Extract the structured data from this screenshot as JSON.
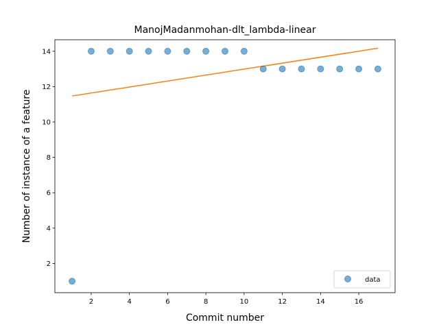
{
  "chart_data": {
    "type": "scatter",
    "title": "ManojMadanmohan-dlt_lambda-linear",
    "xlabel": "Commit number",
    "ylabel": "Number of instance of a feature",
    "xlim": [
      0.1,
      17.9
    ],
    "ylim": [
      0.35,
      14.65
    ],
    "xticks": [
      2,
      4,
      6,
      8,
      10,
      12,
      14,
      16
    ],
    "yticks": [
      2,
      4,
      6,
      8,
      10,
      12,
      14
    ],
    "grid": false,
    "legend_position": "lower-right",
    "series": [
      {
        "name": "data",
        "kind": "scatter",
        "color": "#1f77b4",
        "x": [
          1,
          2,
          3,
          4,
          5,
          6,
          7,
          8,
          9,
          10,
          11,
          12,
          13,
          14,
          15,
          16,
          17
        ],
        "y": [
          1,
          14,
          14,
          14,
          14,
          14,
          14,
          14,
          14,
          14,
          13,
          13,
          13,
          13,
          13,
          13,
          13
        ]
      },
      {
        "kind": "line",
        "color": "#ff7f0e",
        "x": [
          1,
          17
        ],
        "y": [
          11.47,
          14.17
        ]
      }
    ]
  }
}
